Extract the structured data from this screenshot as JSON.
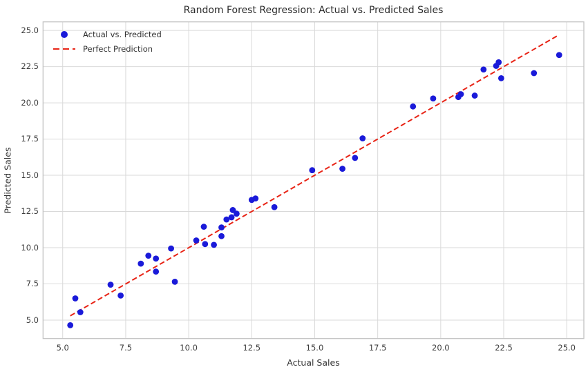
{
  "figure": {
    "title": "Random Forest Regression: Actual vs. Predicted Sales",
    "xlabel": "Actual Sales",
    "ylabel": "Predicted Sales"
  },
  "legend": {
    "items": [
      {
        "label": "Actual vs. Predicted",
        "marker": "circle-icon",
        "color": "#1a1ad9"
      },
      {
        "label": "Perfect Prediction",
        "marker": "dashed-line-icon",
        "color": "#e82315"
      }
    ]
  },
  "colors": {
    "scatter": "#1a1ad9",
    "line": "#e82315",
    "grid": "#d9d9d9",
    "spine": "#c3c3c3",
    "background": "#ffffff",
    "text": "#333333"
  },
  "chart_data": {
    "type": "scatter",
    "title": "Random Forest Regression: Actual vs. Predicted Sales",
    "xlabel": "Actual Sales",
    "ylabel": "Predicted Sales",
    "xlim": [
      4.22,
      25.68
    ],
    "ylim": [
      3.73,
      25.59
    ],
    "xticks": [
      5.0,
      7.5,
      10.0,
      12.5,
      15.0,
      17.5,
      20.0,
      22.5,
      25.0
    ],
    "yticks": [
      5.0,
      7.5,
      10.0,
      12.5,
      15.0,
      17.5,
      20.0,
      22.5,
      25.0
    ],
    "grid": true,
    "legend_position": "upper left",
    "series": [
      {
        "name": "Actual vs. Predicted",
        "type": "scatter",
        "color": "#1a1ad9",
        "points": [
          [
            5.3,
            4.65
          ],
          [
            5.7,
            5.55
          ],
          [
            5.5,
            6.5
          ],
          [
            6.9,
            7.45
          ],
          [
            7.3,
            6.7
          ],
          [
            8.1,
            8.9
          ],
          [
            8.4,
            9.45
          ],
          [
            8.7,
            9.25
          ],
          [
            8.7,
            8.35
          ],
          [
            9.45,
            7.65
          ],
          [
            9.3,
            9.95
          ],
          [
            10.3,
            10.5
          ],
          [
            10.65,
            10.25
          ],
          [
            11.0,
            10.2
          ],
          [
            10.6,
            11.45
          ],
          [
            11.3,
            10.8
          ],
          [
            11.3,
            11.4
          ],
          [
            11.5,
            11.95
          ],
          [
            11.7,
            12.1
          ],
          [
            11.75,
            12.6
          ],
          [
            11.9,
            12.35
          ],
          [
            12.5,
            13.3
          ],
          [
            12.65,
            13.4
          ],
          [
            13.4,
            12.8
          ],
          [
            14.9,
            15.35
          ],
          [
            16.1,
            15.45
          ],
          [
            16.6,
            16.2
          ],
          [
            16.9,
            17.55
          ],
          [
            18.9,
            19.75
          ],
          [
            19.7,
            20.3
          ],
          [
            20.7,
            20.4
          ],
          [
            20.8,
            20.6
          ],
          [
            21.35,
            20.5
          ],
          [
            21.7,
            22.3
          ],
          [
            22.2,
            22.55
          ],
          [
            22.3,
            22.8
          ],
          [
            22.4,
            21.7
          ],
          [
            23.7,
            22.05
          ],
          [
            24.7,
            23.3
          ]
        ]
      },
      {
        "name": "Perfect Prediction",
        "type": "line",
        "style": "dashed",
        "color": "#e82315",
        "points": [
          [
            5.3,
            5.3
          ],
          [
            24.7,
            24.7
          ]
        ]
      }
    ]
  }
}
